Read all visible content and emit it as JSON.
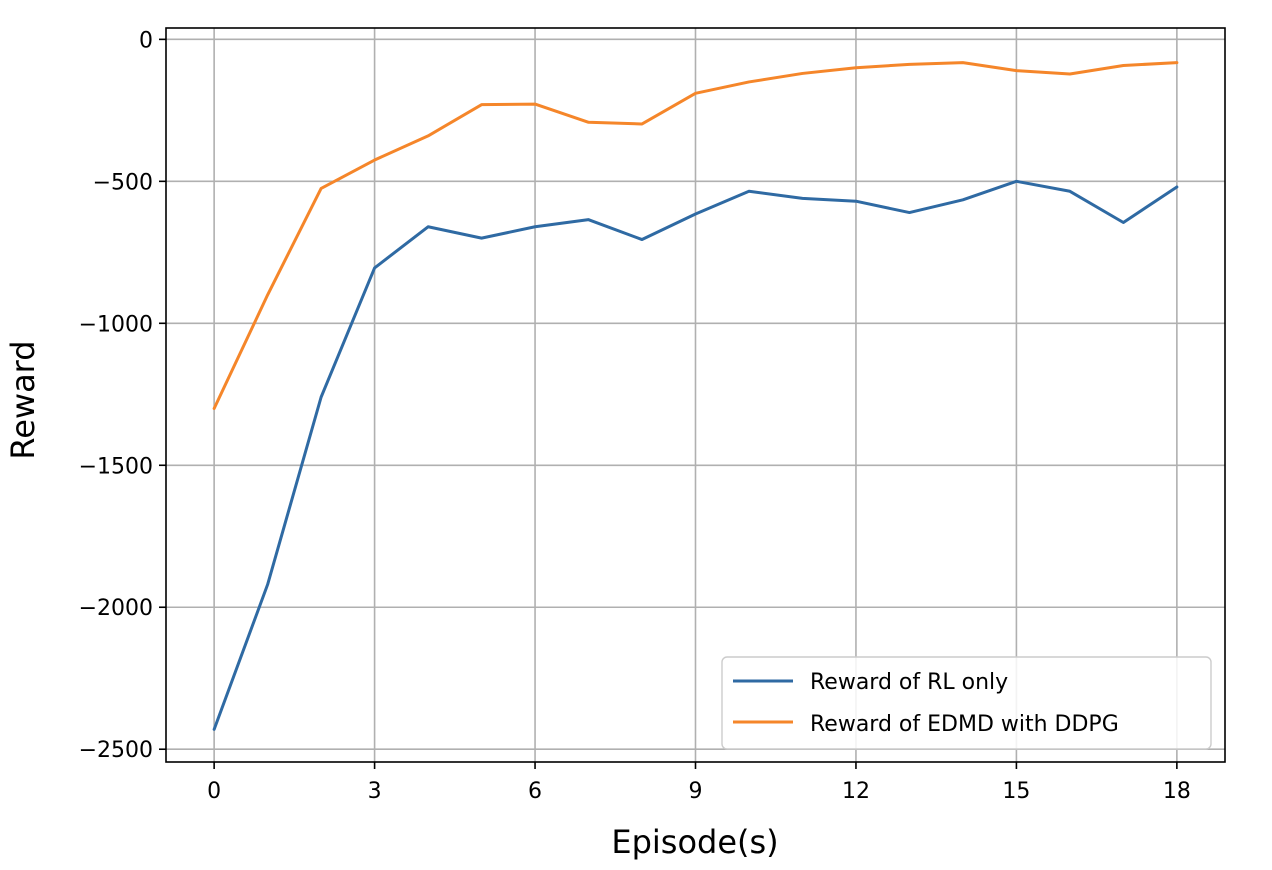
{
  "chart_data": {
    "type": "line",
    "title": "",
    "xlabel": "Episode(s)",
    "ylabel": "Reward",
    "x": [
      0,
      1,
      2,
      3,
      4,
      5,
      6,
      7,
      8,
      9,
      10,
      11,
      12,
      13,
      14,
      15,
      16,
      17,
      18
    ],
    "xlim": [
      -0.9,
      18.9
    ],
    "ylim": [
      -2545,
      40
    ],
    "xticks": [
      0,
      3,
      6,
      9,
      12,
      15,
      18
    ],
    "yticks": [
      0,
      -500,
      -1000,
      -1500,
      -2000,
      -2500
    ],
    "xtick_labels": [
      "0",
      "3",
      "6",
      "9",
      "12",
      "15",
      "18"
    ],
    "ytick_labels": [
      "0",
      "−500",
      "−1000",
      "−1500",
      "−2000",
      "−2500"
    ],
    "grid": true,
    "legend_position": "lower-right",
    "series": [
      {
        "name": "Reward of RL only",
        "color": "#2f6aa3",
        "values": [
          -2430,
          -1920,
          -1260,
          -805,
          -660,
          -700,
          -660,
          -635,
          -705,
          -615,
          -535,
          -560,
          -570,
          -610,
          -565,
          -500,
          -535,
          -645,
          -520
        ]
      },
      {
        "name": "Reward of EDMD with DDPG",
        "color": "#f5862a",
        "values": [
          -1300,
          -900,
          -525,
          -425,
          -340,
          -230,
          -228,
          -292,
          -298,
          -190,
          -150,
          -120,
          -100,
          -88,
          -82,
          -110,
          -122,
          -92,
          -82
        ]
      }
    ]
  }
}
